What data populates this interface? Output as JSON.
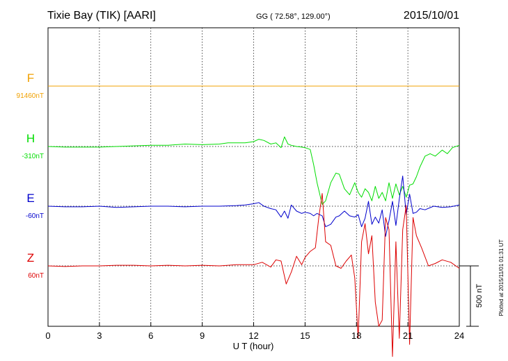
{
  "header": {
    "station": "Tixie Bay (TIK)  [AARI]",
    "coords": "GG ( 72.58°, 129.00°)",
    "date": "2015/10/01"
  },
  "footer": {
    "plotted": "Plotted at 2015/11/01 01:31 UT"
  },
  "scale_bar": {
    "label": "500 nT",
    "value": 500
  },
  "colors": {
    "F": "#f0a000",
    "H": "#00dd00",
    "E": "#0000cc",
    "Z": "#dd0000",
    "axis": "#000000",
    "grid": "#000000"
  },
  "chart_data": {
    "type": "line",
    "xlabel": "U T (hour)",
    "xlim": [
      0,
      24
    ],
    "xticks": [
      0,
      3,
      6,
      9,
      12,
      15,
      18,
      21,
      24
    ],
    "grid": true,
    "series": [
      {
        "name": "F",
        "baseline_label": "91460nT",
        "x": [
          0,
          1,
          2,
          3,
          4,
          5,
          6,
          7,
          8,
          9,
          10,
          11,
          12,
          13,
          14,
          15,
          16,
          17,
          18,
          19,
          20,
          21,
          22,
          23,
          24
        ],
        "y": [
          0,
          0,
          0,
          0,
          0,
          0,
          0,
          0,
          0,
          0,
          0,
          0,
          0,
          0,
          0,
          0,
          0,
          0,
          0,
          0,
          0,
          0,
          0,
          0,
          0
        ]
      },
      {
        "name": "H",
        "baseline_label": "-310nT",
        "x": [
          0,
          1,
          2,
          3,
          4,
          5,
          6,
          7,
          8,
          9,
          10,
          10.5,
          11,
          11.5,
          12,
          12.3,
          12.6,
          13,
          13.3,
          13.6,
          13.8,
          14,
          14.2,
          14.5,
          14.8,
          15,
          15.3,
          15.5,
          15.7,
          16,
          16.2,
          16.5,
          16.8,
          17,
          17.3,
          17.6,
          17.9,
          18.1,
          18.3,
          18.5,
          18.7,
          18.9,
          19.1,
          19.3,
          19.5,
          19.7,
          19.9,
          20.1,
          20.3,
          20.5,
          20.7,
          20.9,
          21.1,
          21.3,
          21.5,
          21.7,
          22,
          22.3,
          22.6,
          23,
          23.3,
          23.6,
          24
        ],
        "y": [
          0,
          -5,
          -5,
          -5,
          0,
          5,
          10,
          10,
          20,
          15,
          20,
          30,
          30,
          30,
          40,
          60,
          50,
          20,
          30,
          -10,
          80,
          20,
          10,
          0,
          -5,
          -10,
          -25,
          -150,
          -300,
          -480,
          -450,
          -300,
          -220,
          -230,
          -350,
          -400,
          -300,
          -380,
          -420,
          -350,
          -380,
          -450,
          -330,
          -430,
          -380,
          -450,
          -300,
          -430,
          -310,
          -400,
          -330,
          -420,
          -320,
          -310,
          -250,
          -170,
          -80,
          -60,
          -80,
          -30,
          -60,
          -10,
          10
        ]
      },
      {
        "name": "E",
        "baseline_label": "-60nT",
        "x": [
          0,
          1,
          2,
          3,
          4,
          5,
          6,
          7,
          8,
          9,
          10,
          11,
          11.5,
          12,
          12.3,
          12.6,
          13,
          13.3,
          13.6,
          13.8,
          14,
          14.2,
          14.5,
          14.8,
          15,
          15.3,
          15.5,
          15.7,
          16,
          16.2,
          16.5,
          16.8,
          17,
          17.3,
          17.6,
          17.9,
          18.1,
          18.3,
          18.5,
          18.7,
          18.9,
          19.1,
          19.3,
          19.5,
          19.7,
          19.9,
          20.1,
          20.3,
          20.5,
          20.7,
          20.9,
          21.1,
          21.3,
          21.5,
          21.7,
          22,
          22.5,
          23,
          23.5,
          24
        ],
        "y": [
          0,
          -5,
          -5,
          0,
          -10,
          -5,
          0,
          0,
          -5,
          0,
          0,
          5,
          10,
          20,
          30,
          0,
          -20,
          -30,
          -90,
          -40,
          -100,
          10,
          -40,
          -60,
          -50,
          -60,
          -80,
          -60,
          -80,
          -170,
          -150,
          -90,
          -80,
          -40,
          -80,
          -90,
          -70,
          -170,
          -100,
          40,
          -150,
          -90,
          -140,
          -30,
          -250,
          -120,
          40,
          -160,
          60,
          250,
          -70,
          100,
          -60,
          -50,
          -20,
          -30,
          0,
          -10,
          -5,
          10
        ]
      },
      {
        "name": "Z",
        "baseline_label": "60nT",
        "x": [
          0,
          1,
          2,
          3,
          4,
          5,
          6,
          7,
          8,
          9,
          10,
          11,
          12,
          12.5,
          13,
          13.3,
          13.6,
          13.9,
          14.2,
          14.5,
          14.8,
          15,
          15.3,
          15.6,
          15.8,
          16,
          16.2,
          16.5,
          16.8,
          17.1,
          17.4,
          17.7,
          17.9,
          18.1,
          18.3,
          18.5,
          18.7,
          18.9,
          19.1,
          19.3,
          19.5,
          19.7,
          19.9,
          20.1,
          20.3,
          20.5,
          20.7,
          20.9,
          21.1,
          21.3,
          21.5,
          21.8,
          22.2,
          22.6,
          23,
          23.5,
          24
        ],
        "y": [
          0,
          -5,
          0,
          0,
          5,
          5,
          0,
          5,
          0,
          5,
          0,
          10,
          10,
          30,
          -10,
          50,
          40,
          -150,
          -50,
          80,
          10,
          70,
          120,
          150,
          400,
          600,
          200,
          170,
          0,
          -20,
          40,
          90,
          -100,
          -600,
          200,
          350,
          100,
          250,
          -300,
          -500,
          -450,
          400,
          300,
          -750,
          200,
          -600,
          300,
          500,
          -650,
          400,
          250,
          150,
          0,
          20,
          50,
          30,
          -20
        ]
      }
    ]
  }
}
